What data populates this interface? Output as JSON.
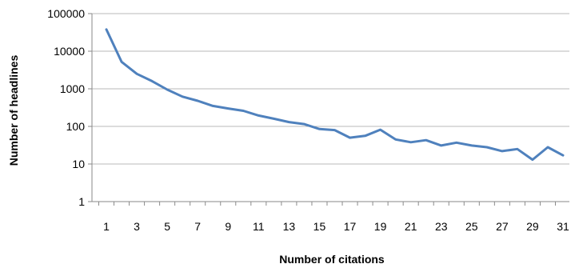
{
  "chart_data": {
    "type": "line",
    "title": "",
    "xlabel": "Number of citations",
    "ylabel": "Number of headlines",
    "y_scale": "log",
    "ylim": [
      1,
      100000
    ],
    "xlim": [
      1,
      31
    ],
    "grid": true,
    "legend": "none",
    "x_tick_labels": [
      "1",
      "3",
      "5",
      "7",
      "9",
      "11",
      "13",
      "15",
      "17",
      "19",
      "21",
      "23",
      "25",
      "27",
      "29",
      "31"
    ],
    "y_tick_labels": [
      "100000",
      "10000",
      "1000",
      "100",
      "10",
      "1"
    ],
    "x": [
      1,
      2,
      3,
      4,
      5,
      6,
      7,
      8,
      9,
      10,
      11,
      12,
      13,
      14,
      15,
      16,
      17,
      18,
      19,
      20,
      21,
      22,
      23,
      24,
      25,
      26,
      27,
      28,
      29,
      30,
      31
    ],
    "series": [
      {
        "color": "#4f81bd",
        "values": [
          38000,
          5200,
          2500,
          1600,
          950,
          620,
          480,
          350,
          300,
          260,
          195,
          160,
          130,
          115,
          85,
          80,
          50,
          56,
          82,
          45,
          38,
          43,
          31,
          37,
          31,
          28,
          22,
          25,
          13,
          28,
          17
        ]
      }
    ]
  }
}
